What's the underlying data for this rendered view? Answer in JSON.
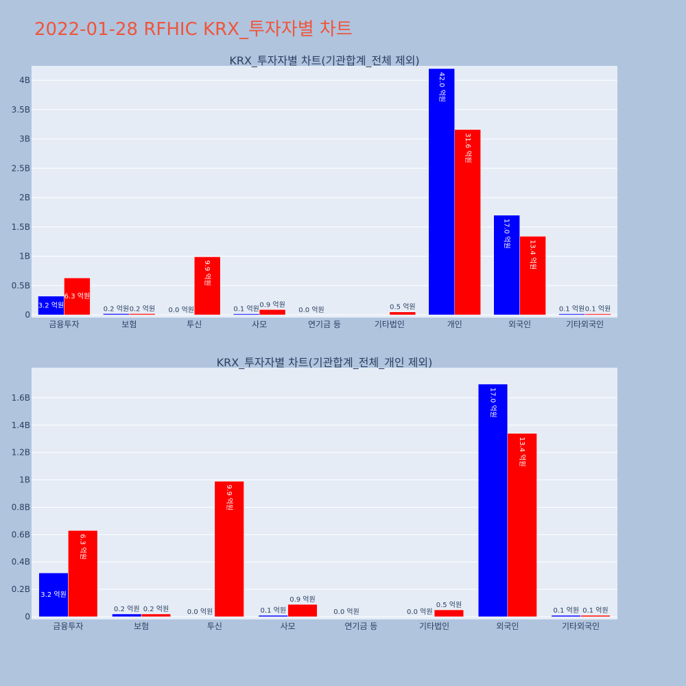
{
  "page": {
    "title": "2022-01-28 RFHIC KRX_투자자별 차트"
  },
  "colors": {
    "background": "#b0c4de",
    "plot_bg": "#e5ecf6",
    "grid": "#ffffff",
    "series_blue": "#0000ff",
    "series_red": "#ff0000",
    "title_red": "#ef553b",
    "text": "#2a3f5f"
  },
  "chart_data": [
    {
      "type": "bar",
      "title": "KRX_투자자별 차트(기관합계_전체 제외)",
      "categories": [
        "금융투자",
        "보험",
        "투신",
        "사모",
        "연기금 등",
        "기타법인",
        "개인",
        "외국인",
        "기타외국인"
      ],
      "ylim": [
        0,
        4200000000.0
      ],
      "yticks": [
        0,
        500000000.0,
        1000000000.0,
        1500000000.0,
        2000000000.0,
        2500000000.0,
        3000000000.0,
        3500000000.0,
        4000000000.0
      ],
      "ytick_labels": [
        "0",
        "0.5B",
        "1B",
        "1.5B",
        "2B",
        "2.5B",
        "3B",
        "3.5B",
        "4B"
      ],
      "grid": true,
      "series": [
        {
          "values": [
            320000000.0,
            20000000.0,
            0,
            10000000.0,
            0,
            null,
            4200000000.0,
            1700000000.0,
            10000000.0
          ],
          "labels": [
            "3.2 억원",
            "0.2 억원",
            "0.0 억원",
            "0.1 억원",
            "0.0 억원",
            "",
            "42.0 억원",
            "17.0 억원",
            "0.1 억원"
          ]
        },
        {
          "values": [
            630000000.0,
            20000000.0,
            990000000.0,
            90000000.0,
            null,
            50000000.0,
            3160000000.0,
            1340000000.0,
            10000000.0
          ],
          "labels": [
            "6.3 억원",
            "0.2 억원",
            "9.9 억원",
            "0.9 억원",
            "",
            "0.5 억원",
            "31.6 억원",
            "13.4 억원",
            "0.1 억원"
          ]
        }
      ]
    },
    {
      "type": "bar",
      "title": "KRX_투자자별 차트(기관합계_전체_개인 제외)",
      "categories": [
        "금융투자",
        "보험",
        "투신",
        "사모",
        "연기금 등",
        "기타법인",
        "외국인",
        "기타외국인"
      ],
      "ylim": [
        0,
        1800000000.0
      ],
      "yticks": [
        0,
        200000000.0,
        400000000.0,
        600000000.0,
        800000000.0,
        1000000000.0,
        1200000000.0,
        1400000000.0,
        1600000000.0
      ],
      "ytick_labels": [
        "0",
        "0.2B",
        "0.4B",
        "0.6B",
        "0.8B",
        "1B",
        "1.2B",
        "1.4B",
        "1.6B"
      ],
      "grid": true,
      "series": [
        {
          "values": [
            320000000.0,
            20000000.0,
            0,
            10000000.0,
            0,
            0,
            1700000000.0,
            10000000.0
          ],
          "labels": [
            "3.2 억원",
            "0.2 억원",
            "0.0 억원",
            "0.1 억원",
            "0.0 억원",
            "0.0 억원",
            "17.0 억원",
            "0.1 억원"
          ]
        },
        {
          "values": [
            630000000.0,
            20000000.0,
            990000000.0,
            90000000.0,
            null,
            50000000.0,
            1340000000.0,
            10000000.0
          ],
          "labels": [
            "6.3 억원",
            "0.2 억원",
            "9.9 억원",
            "0.9 억원",
            "",
            "0.5 억원",
            "13.4 억원",
            "0.1 억원"
          ]
        }
      ]
    }
  ]
}
